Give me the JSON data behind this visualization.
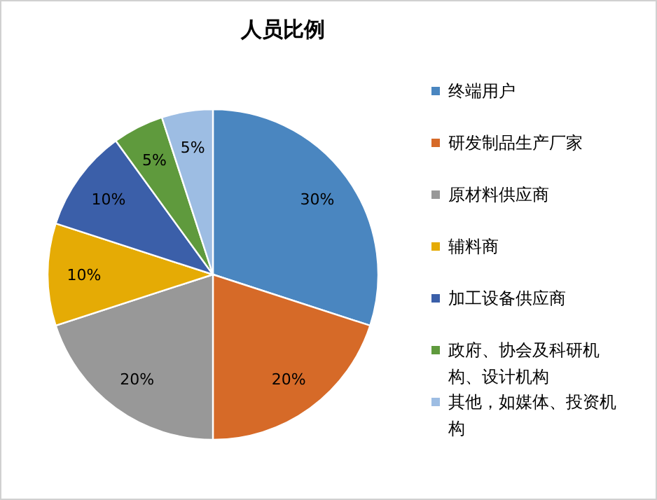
{
  "chart_data": {
    "type": "pie",
    "title": "人员比例",
    "categories": [
      "终端用户",
      "研发制品生产厂家",
      "原材料供应商",
      "辅料商",
      "加工设备供应商",
      "政府、协会及科研机构、设计机构",
      "其他，如媒体、投资机构"
    ],
    "values": [
      30,
      20,
      20,
      10,
      10,
      5,
      5
    ],
    "value_labels": [
      "30%",
      "20%",
      "20%",
      "10%",
      "10%",
      "5%",
      "5%"
    ],
    "colors": [
      "#4a86c0",
      "#d66a28",
      "#989898",
      "#e5ab05",
      "#3b5fa9",
      "#5f9a3d",
      "#9dbde3"
    ],
    "legend": "right"
  }
}
